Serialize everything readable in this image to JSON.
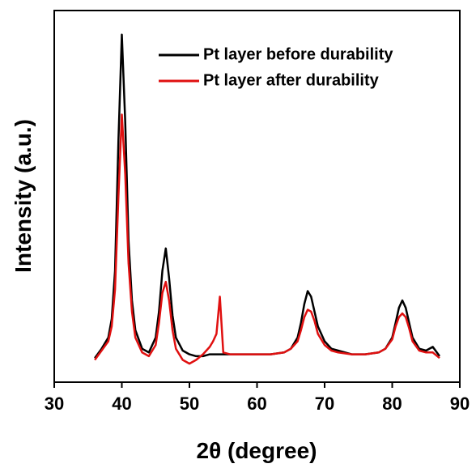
{
  "chart_data": {
    "type": "line",
    "x_label": "2θ (degree)",
    "y_label": "Intensity (a.u.)",
    "x": [
      36,
      37,
      38,
      38.5,
      39,
      39.5,
      40,
      40.5,
      41,
      41.5,
      42,
      43,
      44,
      45,
      45.5,
      46,
      46.5,
      47,
      47.5,
      48,
      49,
      50,
      51,
      52,
      53,
      53.5,
      54,
      54.5,
      55,
      56,
      58,
      60,
      62,
      64,
      65,
      66,
      66.5,
      67,
      67.5,
      68,
      68.5,
      69,
      70,
      71,
      72,
      74,
      76,
      78,
      79,
      80,
      80.5,
      81,
      81.5,
      82,
      82.5,
      83,
      84,
      85,
      86,
      87
    ],
    "series": [
      {
        "name": "Pt layer before durability",
        "color": "#000000",
        "values": [
          6.5,
          9,
          12,
          17,
          30,
          65,
          93.5,
          70,
          38,
          22,
          14,
          9,
          8,
          12,
          19,
          30,
          36,
          28,
          18,
          12,
          8.5,
          7.5,
          7,
          7,
          7.5,
          7.5,
          7.5,
          7.5,
          7.5,
          7.5,
          7.5,
          7.5,
          7.5,
          8,
          9,
          12,
          16,
          21,
          24.5,
          23,
          19,
          15,
          11,
          9,
          8.5,
          7.5,
          7.5,
          8,
          9,
          12,
          16,
          20,
          22,
          20,
          16,
          12,
          9,
          8.5,
          9.5,
          7
        ]
      },
      {
        "name": "Pt layer after durability",
        "color": "#e01010",
        "values": [
          6,
          8.5,
          11,
          15,
          25,
          50,
          72,
          56,
          32,
          19,
          12,
          8,
          7,
          10,
          16,
          24,
          27,
          22,
          14,
          9,
          6,
          5,
          6,
          7.5,
          9.5,
          11,
          13,
          23,
          8,
          7.5,
          7.5,
          7.5,
          7.5,
          8,
          9,
          11,
          14,
          17.5,
          19.5,
          19,
          16.5,
          13,
          10,
          8.5,
          8,
          7.5,
          7.5,
          8,
          9,
          11.5,
          15,
          17.5,
          18.5,
          17.5,
          14.5,
          11,
          8.5,
          8,
          8,
          6.5
        ]
      }
    ],
    "xlim": [
      30,
      90
    ],
    "xticks": [
      30,
      40,
      50,
      60,
      70,
      80,
      90
    ],
    "ylim": [
      0,
      100
    ],
    "legend": "upper right"
  }
}
